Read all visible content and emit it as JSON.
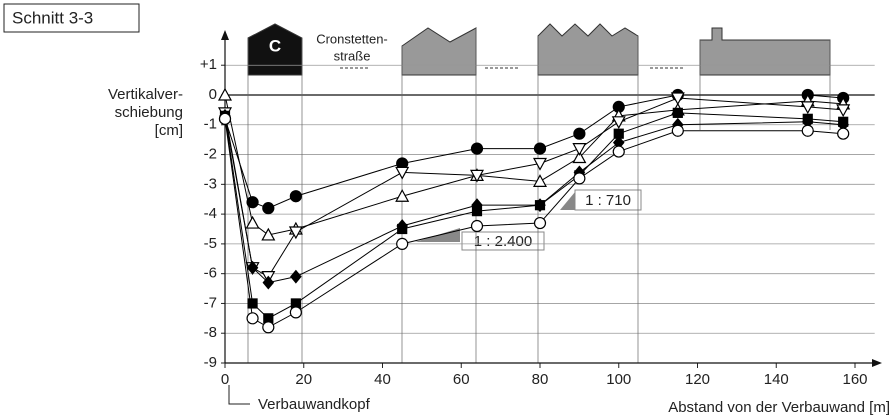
{
  "chart_data": {
    "type": "line",
    "title": "Schnitt 3-3",
    "y_label_lines": [
      "Vertikalver-",
      "schiebung",
      "[cm]"
    ],
    "x_label": "Abstand von der Verbauwand [m]",
    "annotations": {
      "wall_head": "Verbauwandkopf",
      "ratio_steep": "1 : 710",
      "ratio_flat": "1 : 2.400",
      "building_c": "C",
      "street_line1": "Cronstetten-",
      "street_line2": "straße"
    },
    "x": [
      0,
      7,
      11,
      18,
      45,
      64,
      80,
      90,
      100,
      115,
      148,
      157
    ],
    "series": [
      {
        "marker": "circle",
        "filled": true,
        "color": "#000000",
        "values": [
          -0.8,
          -3.6,
          -3.8,
          -3.4,
          -2.3,
          -1.8,
          -1.8,
          -1.3,
          -0.4,
          0,
          0,
          -0.1
        ]
      },
      {
        "marker": "triangle-up",
        "filled": false,
        "color": "#000000",
        "values": [
          0,
          -4.3,
          -4.7,
          -4.5,
          -3.4,
          -2.7,
          -2.9,
          -2.1,
          -0.7,
          -0.5,
          -0.2,
          -0.3
        ]
      },
      {
        "marker": "triangle-down",
        "filled": false,
        "color": "#000000",
        "values": [
          -0.6,
          -5.8,
          -6.1,
          -4.6,
          -2.6,
          -2.7,
          -2.3,
          -1.8,
          -0.9,
          -0.1,
          -0.4,
          -0.5
        ]
      },
      {
        "marker": "diamond",
        "filled": true,
        "color": "#000000",
        "values": [
          -0.7,
          -5.8,
          -6.3,
          -6.1,
          -4.4,
          -3.7,
          -3.7,
          -2.6,
          -1.6,
          -1.0,
          -0.9,
          -1.0
        ]
      },
      {
        "marker": "square",
        "filled": true,
        "color": "#000000",
        "values": [
          -0.7,
          -7.0,
          -7.5,
          -7.0,
          -4.5,
          -3.9,
          -3.7,
          -2.7,
          -1.3,
          -0.6,
          -0.8,
          -0.9
        ]
      },
      {
        "marker": "circle",
        "filled": false,
        "color": "#000000",
        "values": [
          -0.8,
          -7.5,
          -7.8,
          -7.3,
          -5.0,
          -4.4,
          -4.3,
          -2.8,
          -1.9,
          -1.2,
          -1.2,
          -1.3
        ]
      }
    ],
    "xlim": [
      0,
      165
    ],
    "ylim": [
      -9,
      1.3
    ],
    "xticks": [
      0,
      20,
      40,
      60,
      80,
      100,
      120,
      140,
      160
    ],
    "yticks": [
      {
        "value": 1,
        "label": "+1"
      },
      0,
      -1,
      -2,
      -3,
      -4,
      -5,
      -6,
      -7,
      -8,
      -9
    ],
    "grid": true
  }
}
